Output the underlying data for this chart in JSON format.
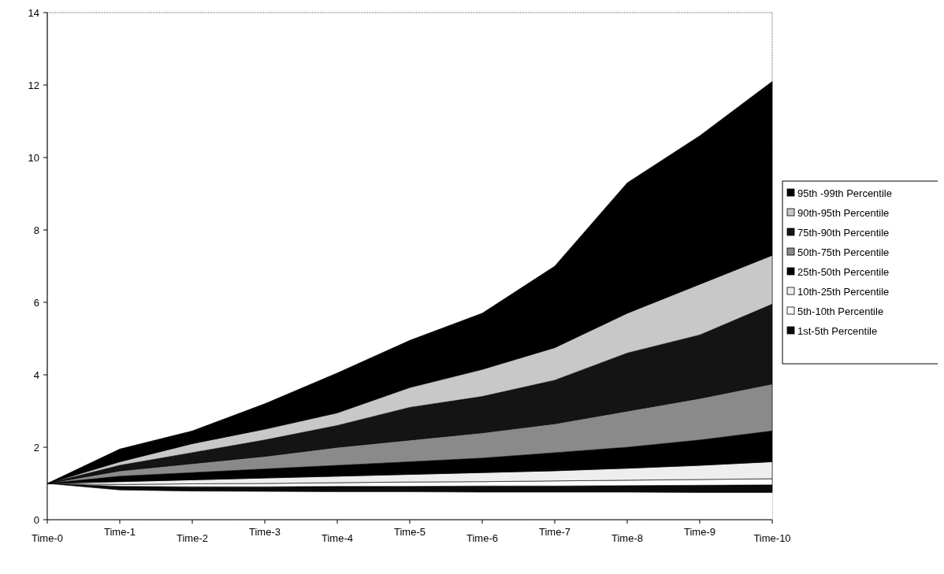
{
  "chart_data": {
    "type": "area",
    "stacked": true,
    "categories": [
      "Time-0",
      "Time-1",
      "Time-2",
      "Time-3",
      "Time-4",
      "Time-5",
      "Time-6",
      "Time-7",
      "Time-8",
      "Time-9",
      "Time-10"
    ],
    "ylim": [
      0,
      14
    ],
    "yticks": [
      0,
      2,
      4,
      6,
      8,
      10,
      12,
      14
    ],
    "grid": false,
    "legend": "right",
    "series": [
      {
        "color": "#ffffff",
        "values": [
          1,
          0.82,
          0.79,
          0.78,
          0.77,
          0.77,
          0.76,
          0.76,
          0.76,
          0.75,
          0.75
        ]
      },
      {
        "name": "1st-5th Percentile",
        "color": "#0a0a0a",
        "values": [
          0,
          0.1,
          0.12,
          0.13,
          0.15,
          0.15,
          0.17,
          0.17,
          0.18,
          0.2,
          0.21
        ]
      },
      {
        "name": "5th-10th Percentile",
        "color": "#ffffff",
        "values": [
          0,
          0.05,
          0.08,
          0.09,
          0.1,
          0.12,
          0.12,
          0.14,
          0.15,
          0.16,
          0.17
        ]
      },
      {
        "name": "10th-25th Percentile",
        "color": "#eeeeee",
        "values": [
          0,
          0.08,
          0.11,
          0.15,
          0.18,
          0.21,
          0.25,
          0.28,
          0.33,
          0.39,
          0.47
        ]
      },
      {
        "name": "25th-50th Percentile",
        "color": "#000000",
        "values": [
          0,
          0.15,
          0.2,
          0.25,
          0.3,
          0.35,
          0.4,
          0.5,
          0.58,
          0.7,
          0.85
        ]
      },
      {
        "name": "50th-75th Percentile",
        "color": "#8a8a8a",
        "values": [
          0,
          0.15,
          0.25,
          0.35,
          0.5,
          0.6,
          0.7,
          0.8,
          1.0,
          1.15,
          1.3
        ]
      },
      {
        "name": "75th-90th Percentile",
        "color": "#141414",
        "values": [
          0,
          0.15,
          0.3,
          0.45,
          0.6,
          0.9,
          1.0,
          1.2,
          1.6,
          1.75,
          2.2
        ]
      },
      {
        "name": "90th-95th Percentile",
        "color": "#c8c8c8",
        "values": [
          0,
          0.1,
          0.25,
          0.3,
          0.35,
          0.55,
          0.75,
          0.9,
          1.1,
          1.4,
          1.35
        ]
      },
      {
        "name": "95th -99th Percentile",
        "color": "#000000",
        "values": [
          0,
          0.35,
          0.35,
          0.7,
          1.1,
          1.3,
          1.55,
          2.25,
          3.6,
          4.1,
          4.8
        ]
      }
    ]
  }
}
